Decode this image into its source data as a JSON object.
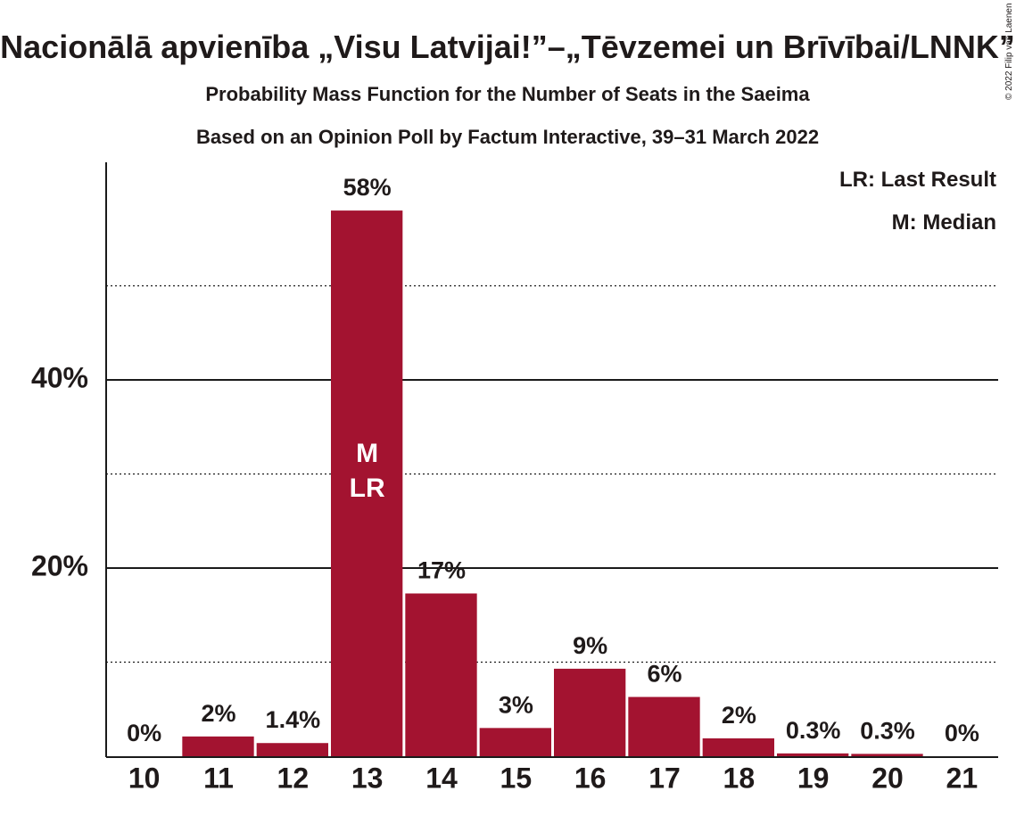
{
  "chart_data": {
    "type": "bar",
    "title": "Nacionālā apvienība „Visu Latvijai!”–„Tēvzemei un Brīvībai/LNNK”",
    "subtitle_1": "Probability Mass Function for the Number of Seats in the Saeima",
    "subtitle_2": "Based on an Opinion Poll by Factum Interactive, 39–31 March 2022",
    "categories": [
      "10",
      "11",
      "12",
      "13",
      "14",
      "15",
      "16",
      "17",
      "18",
      "19",
      "20",
      "21"
    ],
    "values": [
      0,
      2.1,
      1.4,
      58,
      17.3,
      3.0,
      9.3,
      6.3,
      1.9,
      0.3,
      0.25,
      0
    ],
    "value_labels": [
      "0%",
      "2%",
      "1.4%",
      "58%",
      "17%",
      "3%",
      "9%",
      "6%",
      "2%",
      "0.3%",
      "0.3%",
      "0%"
    ],
    "median_label": "M",
    "last_result_label": "LR",
    "marker_category": "13",
    "y_ticks": [
      {
        "value": 20,
        "label": "20%"
      },
      {
        "value": 40,
        "label": "40%"
      }
    ],
    "minor_gridlines": [
      10,
      30,
      50
    ],
    "ylim": [
      0,
      63.3
    ],
    "legend": {
      "placement": "top-right",
      "entries": [
        "LR: Last Result",
        "M: Median"
      ]
    },
    "bar_color": "#a31330",
    "copyright": "© 2022 Filip van Laenen",
    "grid": true
  }
}
